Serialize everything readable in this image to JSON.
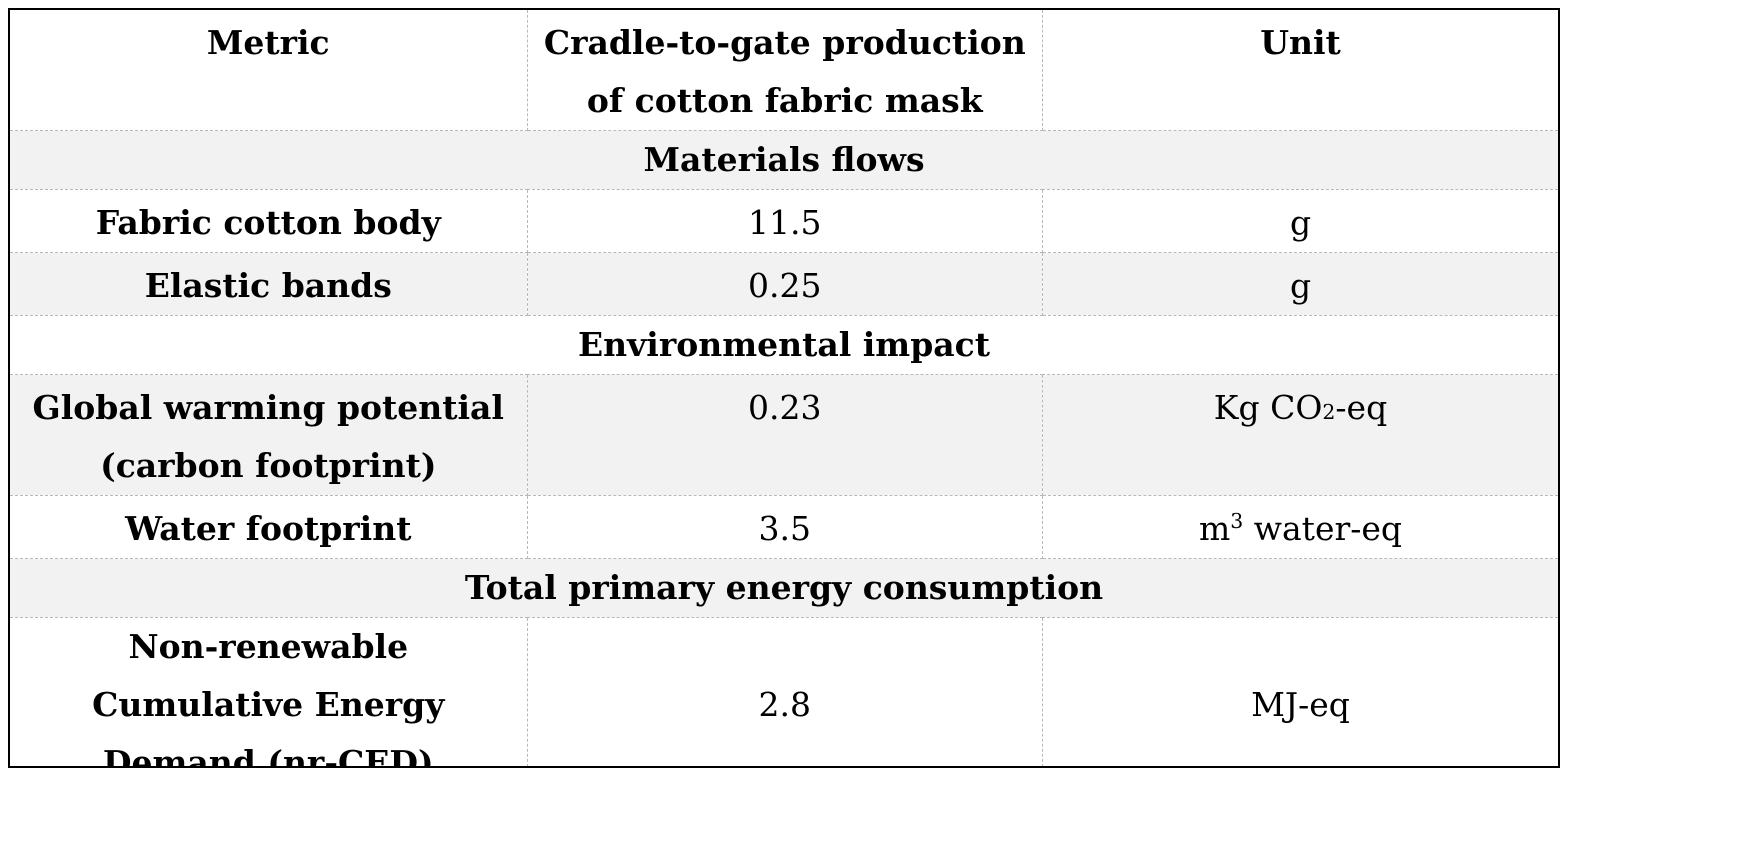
{
  "table": {
    "headers": {
      "metric": "Metric",
      "production": "Cradle-to-gate production of cotton fabric mask",
      "unit": "Unit"
    },
    "sections": {
      "materials": "Materials flows",
      "environmental": "Environmental impact",
      "energy": "Total primary energy consumption"
    },
    "rows": {
      "fabric_body": {
        "metric": "Fabric cotton body",
        "value": "11.5",
        "unit": "g"
      },
      "elastic_bands": {
        "metric": "Elastic bands",
        "value": "0.25",
        "unit": "g"
      },
      "gwp": {
        "metric": "Global warming potential (carbon footprint)",
        "value": "0.23",
        "unit_prefix": "Kg CO",
        "unit_sub": "2",
        "unit_suffix": "-eq"
      },
      "water": {
        "metric": "Water footprint",
        "value": "3.5",
        "unit_prefix": "m",
        "unit_sup": "3",
        "unit_suffix": " water-eq"
      },
      "nr_ced": {
        "metric": "Non-renewable Cumulative Energy Demand (nr-CED)",
        "value": "2.8",
        "unit": "MJ-eq"
      }
    }
  }
}
